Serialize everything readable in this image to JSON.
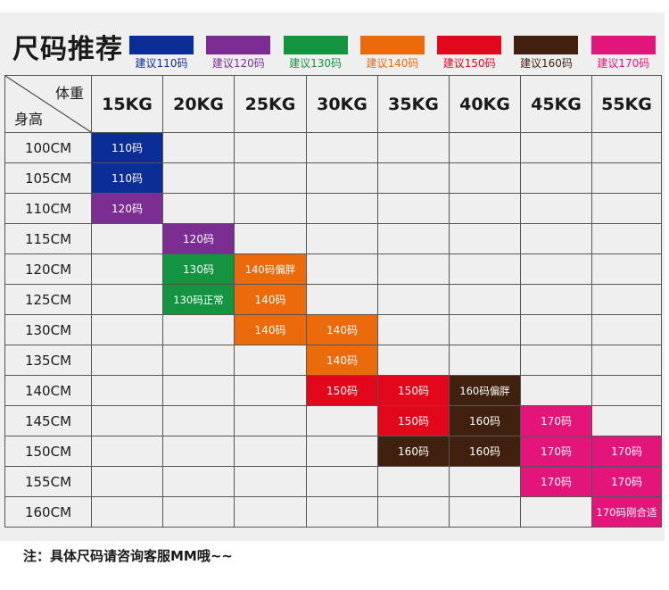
{
  "title": "尺码推荐",
  "legend": [
    {
      "label": "建议110码",
      "color": "#0a2d96"
    },
    {
      "label": "建议120码",
      "color": "#7b2d94"
    },
    {
      "label": "建议130码",
      "color": "#139440"
    },
    {
      "label": "建议140码",
      "color": "#ea6a0c"
    },
    {
      "label": "建议150码",
      "color": "#e2071a"
    },
    {
      "label": "建议160码",
      "color": "#40200e"
    },
    {
      "label": "建议170码",
      "color": "#e3157a"
    }
  ],
  "table": {
    "corner_weight_label": "体重",
    "corner_height_label": "身高",
    "weights": [
      "15KG",
      "20KG",
      "25KG",
      "30KG",
      "35KG",
      "40KG",
      "45KG",
      "55KG"
    ],
    "rows": [
      {
        "height": "100CM",
        "cells": [
          {
            "text": "110码",
            "size": 110
          },
          null,
          null,
          null,
          null,
          null,
          null,
          null
        ]
      },
      {
        "height": "105CM",
        "cells": [
          {
            "text": "110码",
            "size": 110
          },
          null,
          null,
          null,
          null,
          null,
          null,
          null
        ]
      },
      {
        "height": "110CM",
        "cells": [
          {
            "text": "120码",
            "size": 120
          },
          null,
          null,
          null,
          null,
          null,
          null,
          null
        ]
      },
      {
        "height": "115CM",
        "cells": [
          null,
          {
            "text": "120码",
            "size": 120
          },
          null,
          null,
          null,
          null,
          null,
          null
        ]
      },
      {
        "height": "120CM",
        "cells": [
          null,
          {
            "text": "130码",
            "size": 130
          },
          {
            "text": "140码偏胖",
            "size": 140
          },
          null,
          null,
          null,
          null,
          null
        ]
      },
      {
        "height": "125CM",
        "cells": [
          null,
          {
            "text": "130码正常",
            "size": 130
          },
          {
            "text": "140码",
            "size": 140
          },
          null,
          null,
          null,
          null,
          null
        ]
      },
      {
        "height": "130CM",
        "cells": [
          null,
          null,
          {
            "text": "140码",
            "size": 140
          },
          {
            "text": "140码",
            "size": 140
          },
          null,
          null,
          null,
          null
        ]
      },
      {
        "height": "135CM",
        "cells": [
          null,
          null,
          null,
          {
            "text": "140码",
            "size": 140
          },
          null,
          null,
          null,
          null
        ]
      },
      {
        "height": "140CM",
        "cells": [
          null,
          null,
          null,
          {
            "text": "150码",
            "size": 150
          },
          {
            "text": "150码",
            "size": 150
          },
          {
            "text": "160码偏胖",
            "size": 160
          },
          null,
          null
        ]
      },
      {
        "height": "145CM",
        "cells": [
          null,
          null,
          null,
          null,
          {
            "text": "150码",
            "size": 150
          },
          {
            "text": "160码",
            "size": 160
          },
          {
            "text": "170码",
            "size": 170
          },
          null
        ]
      },
      {
        "height": "150CM",
        "cells": [
          null,
          null,
          null,
          null,
          {
            "text": "160码",
            "size": 160
          },
          {
            "text": "160码",
            "size": 160
          },
          {
            "text": "170码",
            "size": 170
          },
          {
            "text": "170码",
            "size": 170
          }
        ]
      },
      {
        "height": "155CM",
        "cells": [
          null,
          null,
          null,
          null,
          null,
          null,
          {
            "text": "170码",
            "size": 170
          },
          {
            "text": "170码",
            "size": 170
          }
        ]
      },
      {
        "height": "160CM",
        "cells": [
          null,
          null,
          null,
          null,
          null,
          null,
          null,
          {
            "text": "170码刚合适",
            "size": 170
          }
        ]
      }
    ]
  },
  "size_colors": {
    "110": "#0a2d96",
    "120": "#7b2d94",
    "130": "#139440",
    "140": "#ea6a0c",
    "150": "#e2071a",
    "160": "#40200e",
    "170": "#e3157a"
  },
  "note": "注：具体尺码请咨询客服MM哦~~"
}
